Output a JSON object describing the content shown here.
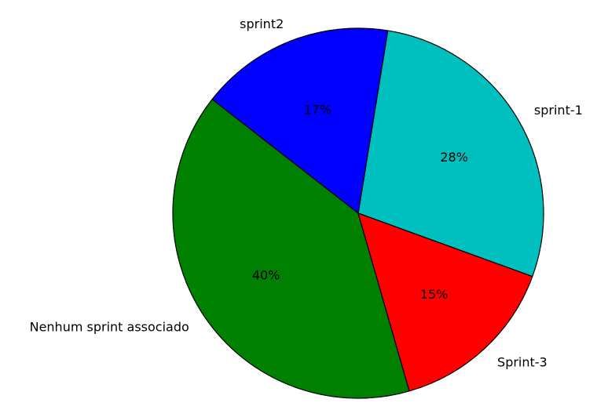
{
  "chart_data": {
    "type": "pie",
    "slices": [
      {
        "label": "sprint-1",
        "value": 28,
        "pct_label": "28%",
        "color": "#00BFBF"
      },
      {
        "label": "sprint2",
        "value": 17,
        "pct_label": "17%",
        "color": "#0000FF"
      },
      {
        "label": "Nenhum sprint associado",
        "value": 40,
        "pct_label": "40%",
        "color": "#008000"
      },
      {
        "label": "Sprint-3",
        "value": 15,
        "pct_label": "15%",
        "color": "#FF0000"
      }
    ],
    "start_angle_deg": -20,
    "direction": "counterclockwise",
    "edge_color": "#000000"
  }
}
